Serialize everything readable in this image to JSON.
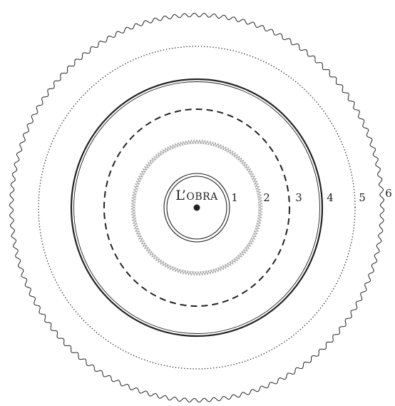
{
  "center": {
    "label_initial": "L’",
    "label_rest": "OBRA"
  },
  "rings": [
    {
      "label": "1",
      "style": "double-thin"
    },
    {
      "label": "2",
      "style": "zigzag"
    },
    {
      "label": "3",
      "style": "dashed"
    },
    {
      "label": "4",
      "style": "double-thick"
    },
    {
      "label": "5",
      "style": "dotted"
    },
    {
      "label": "6",
      "style": "wavy"
    }
  ],
  "colors": {
    "ink": "#222222",
    "zigzag": "#9a9a9a",
    "background": "#ffffff"
  }
}
